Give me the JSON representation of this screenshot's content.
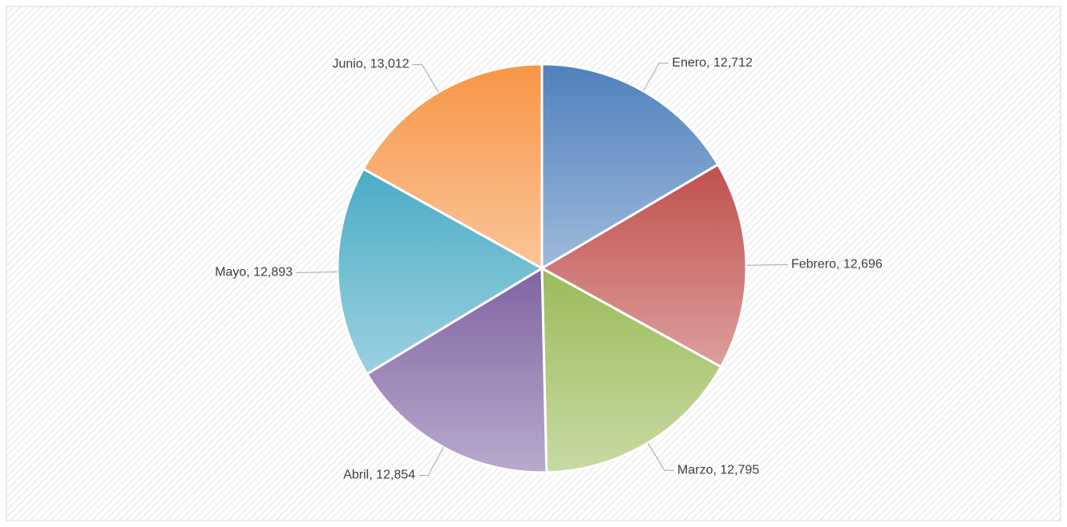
{
  "chart_data": {
    "type": "pie",
    "categories": [
      "Enero",
      "Febrero",
      "Marzo",
      "Abril",
      "Mayo",
      "Junio"
    ],
    "values": [
      12712,
      12696,
      12795,
      12854,
      12893,
      13012
    ],
    "value_labels": [
      "12,712",
      "12,696",
      "12,795",
      "12,854",
      "12,893",
      "13,012"
    ],
    "label_separator": ", ",
    "colors": [
      "#4f81bd",
      "#c0504d",
      "#9bbb59",
      "#8064a2",
      "#4bacc6",
      "#f79646"
    ]
  }
}
